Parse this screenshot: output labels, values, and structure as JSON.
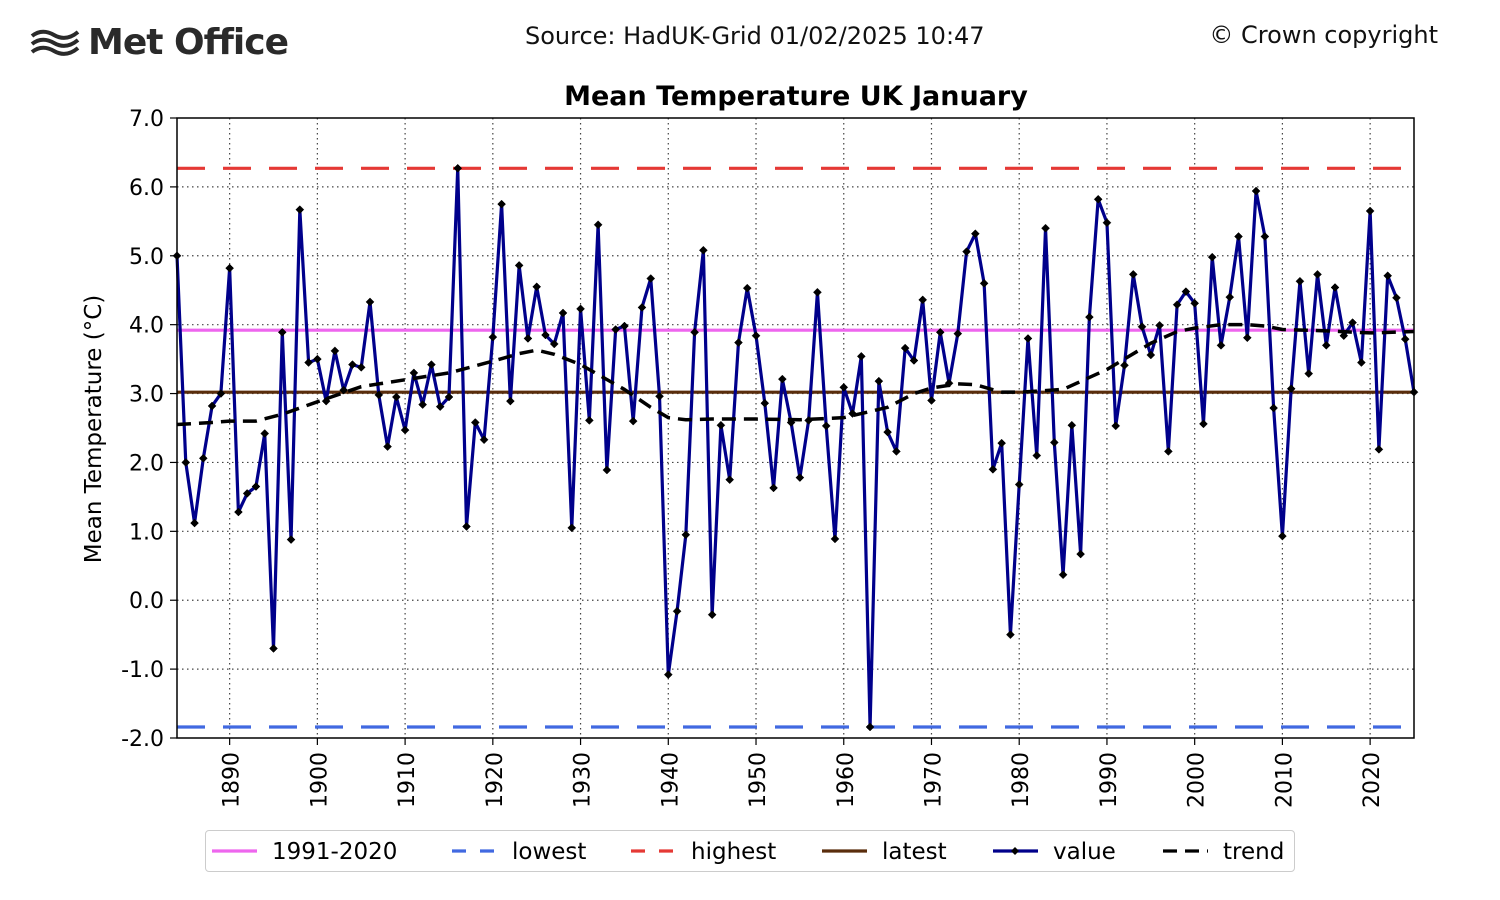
{
  "header": {
    "logo_text": "Met Office",
    "logo_icon": "met-office-waves-icon",
    "source": "Source: HadUK-Grid 01/02/2025 10:47",
    "copyright": "© Crown copyright"
  },
  "chart_data": {
    "type": "line",
    "title": "Mean Temperature UK January",
    "xlabel": "",
    "ylabel": "Mean Temperature (°C)",
    "xlim": [
      1884,
      2025
    ],
    "ylim": [
      -2.0,
      7.0
    ],
    "x_ticks": [
      1890,
      1900,
      1910,
      1920,
      1930,
      1940,
      1950,
      1960,
      1970,
      1980,
      1990,
      2000,
      2010,
      2020
    ],
    "y_ticks": [
      "-2.0",
      "-1.0",
      "0.0",
      "1.0",
      "2.0",
      "3.0",
      "4.0",
      "5.0",
      "6.0",
      "7.0"
    ],
    "grid": true,
    "legend_position": "bottom",
    "reference_lines": [
      {
        "name": "1991-2020",
        "value": 3.92,
        "color": "#ee66ee",
        "style": "solid"
      },
      {
        "name": "lowest",
        "value": -1.84,
        "color": "#4169e1",
        "style": "dashed"
      },
      {
        "name": "highest",
        "value": 6.27,
        "color": "#e53935",
        "style": "dashed"
      },
      {
        "name": "latest",
        "value": 3.02,
        "color": "#5a2d0c",
        "style": "solid"
      }
    ],
    "series": [
      {
        "name": "value",
        "color": "#00008b",
        "x": [
          1884,
          1885,
          1886,
          1887,
          1888,
          1889,
          1890,
          1891,
          1892,
          1893,
          1894,
          1895,
          1896,
          1897,
          1898,
          1899,
          1900,
          1901,
          1902,
          1903,
          1904,
          1905,
          1906,
          1907,
          1908,
          1909,
          1910,
          1911,
          1912,
          1913,
          1914,
          1915,
          1916,
          1917,
          1918,
          1919,
          1920,
          1921,
          1922,
          1923,
          1924,
          1925,
          1926,
          1927,
          1928,
          1929,
          1930,
          1931,
          1932,
          1933,
          1934,
          1935,
          1936,
          1937,
          1938,
          1939,
          1940,
          1941,
          1942,
          1943,
          1944,
          1945,
          1946,
          1947,
          1948,
          1949,
          1950,
          1951,
          1952,
          1953,
          1954,
          1955,
          1956,
          1957,
          1958,
          1959,
          1960,
          1961,
          1962,
          1963,
          1964,
          1965,
          1966,
          1967,
          1968,
          1969,
          1970,
          1971,
          1972,
          1973,
          1974,
          1975,
          1976,
          1977,
          1978,
          1979,
          1980,
          1981,
          1982,
          1983,
          1984,
          1985,
          1986,
          1987,
          1988,
          1989,
          1990,
          1991,
          1992,
          1993,
          1994,
          1995,
          1996,
          1997,
          1998,
          1999,
          2000,
          2001,
          2002,
          2003,
          2004,
          2005,
          2006,
          2007,
          2008,
          2009,
          2010,
          2011,
          2012,
          2013,
          2014,
          2015,
          2016,
          2017,
          2018,
          2019,
          2020,
          2021,
          2022,
          2023,
          2024,
          2025
        ],
        "values": [
          5.0,
          2.0,
          1.12,
          2.06,
          2.82,
          3.0,
          4.82,
          1.28,
          1.55,
          1.65,
          2.42,
          -0.7,
          3.89,
          0.88,
          5.67,
          3.45,
          3.5,
          2.89,
          3.62,
          3.05,
          3.42,
          3.38,
          4.33,
          2.98,
          2.23,
          2.95,
          2.47,
          3.3,
          2.84,
          3.42,
          2.81,
          2.95,
          6.27,
          1.07,
          2.58,
          2.33,
          3.82,
          5.75,
          2.89,
          4.86,
          3.8,
          4.55,
          3.85,
          3.72,
          4.17,
          1.05,
          4.23,
          2.61,
          5.45,
          1.89,
          3.93,
          3.98,
          2.6,
          4.25,
          4.67,
          2.96,
          -1.08,
          -0.16,
          0.95,
          3.89,
          5.08,
          -0.21,
          2.54,
          1.75,
          3.74,
          4.53,
          3.84,
          2.86,
          1.63,
          3.21,
          2.58,
          1.78,
          2.61,
          4.47,
          2.53,
          0.89,
          3.09,
          2.71,
          3.54,
          -1.84,
          3.18,
          2.44,
          2.16,
          3.66,
          3.48,
          4.36,
          2.9,
          3.89,
          3.15,
          3.87,
          5.06,
          5.32,
          4.6,
          1.9,
          2.28,
          -0.5,
          1.68,
          3.8,
          2.1,
          5.4,
          2.29,
          0.37,
          2.54,
          0.67,
          4.11,
          5.82,
          5.48,
          2.53,
          3.41,
          4.73,
          3.97,
          3.56,
          3.99,
          2.16,
          4.29,
          4.48,
          4.31,
          2.56,
          4.98,
          3.7,
          4.4,
          5.28,
          3.81,
          5.94,
          5.28,
          2.79,
          0.93,
          3.07,
          4.63,
          3.29,
          4.73,
          3.7,
          4.54,
          3.84,
          4.03,
          3.45,
          5.65,
          2.19,
          4.71,
          4.39,
          3.79,
          3.02
        ]
      },
      {
        "name": "trend",
        "color": "#000000",
        "x": [
          1884,
          1888,
          1890,
          1893,
          1896,
          1900,
          1905,
          1910,
          1915,
          1920,
          1923,
          1925,
          1927,
          1930,
          1935,
          1938,
          1940,
          1942,
          1945,
          1950,
          1955,
          1960,
          1965,
          1968,
          1970,
          1973,
          1975,
          1978,
          1980,
          1985,
          1990,
          1995,
          1998,
          2000,
          2003,
          2006,
          2008,
          2010,
          2015,
          2020,
          2025
        ],
        "values": [
          2.55,
          2.58,
          2.6,
          2.6,
          2.7,
          2.88,
          3.1,
          3.2,
          3.3,
          3.47,
          3.58,
          3.63,
          3.57,
          3.42,
          3.06,
          2.8,
          2.65,
          2.62,
          2.63,
          2.63,
          2.62,
          2.65,
          2.8,
          3.0,
          3.08,
          3.14,
          3.13,
          3.02,
          3.02,
          3.06,
          3.35,
          3.73,
          3.9,
          3.95,
          4.0,
          4.0,
          3.98,
          3.93,
          3.91,
          3.88,
          3.9
        ]
      }
    ]
  }
}
